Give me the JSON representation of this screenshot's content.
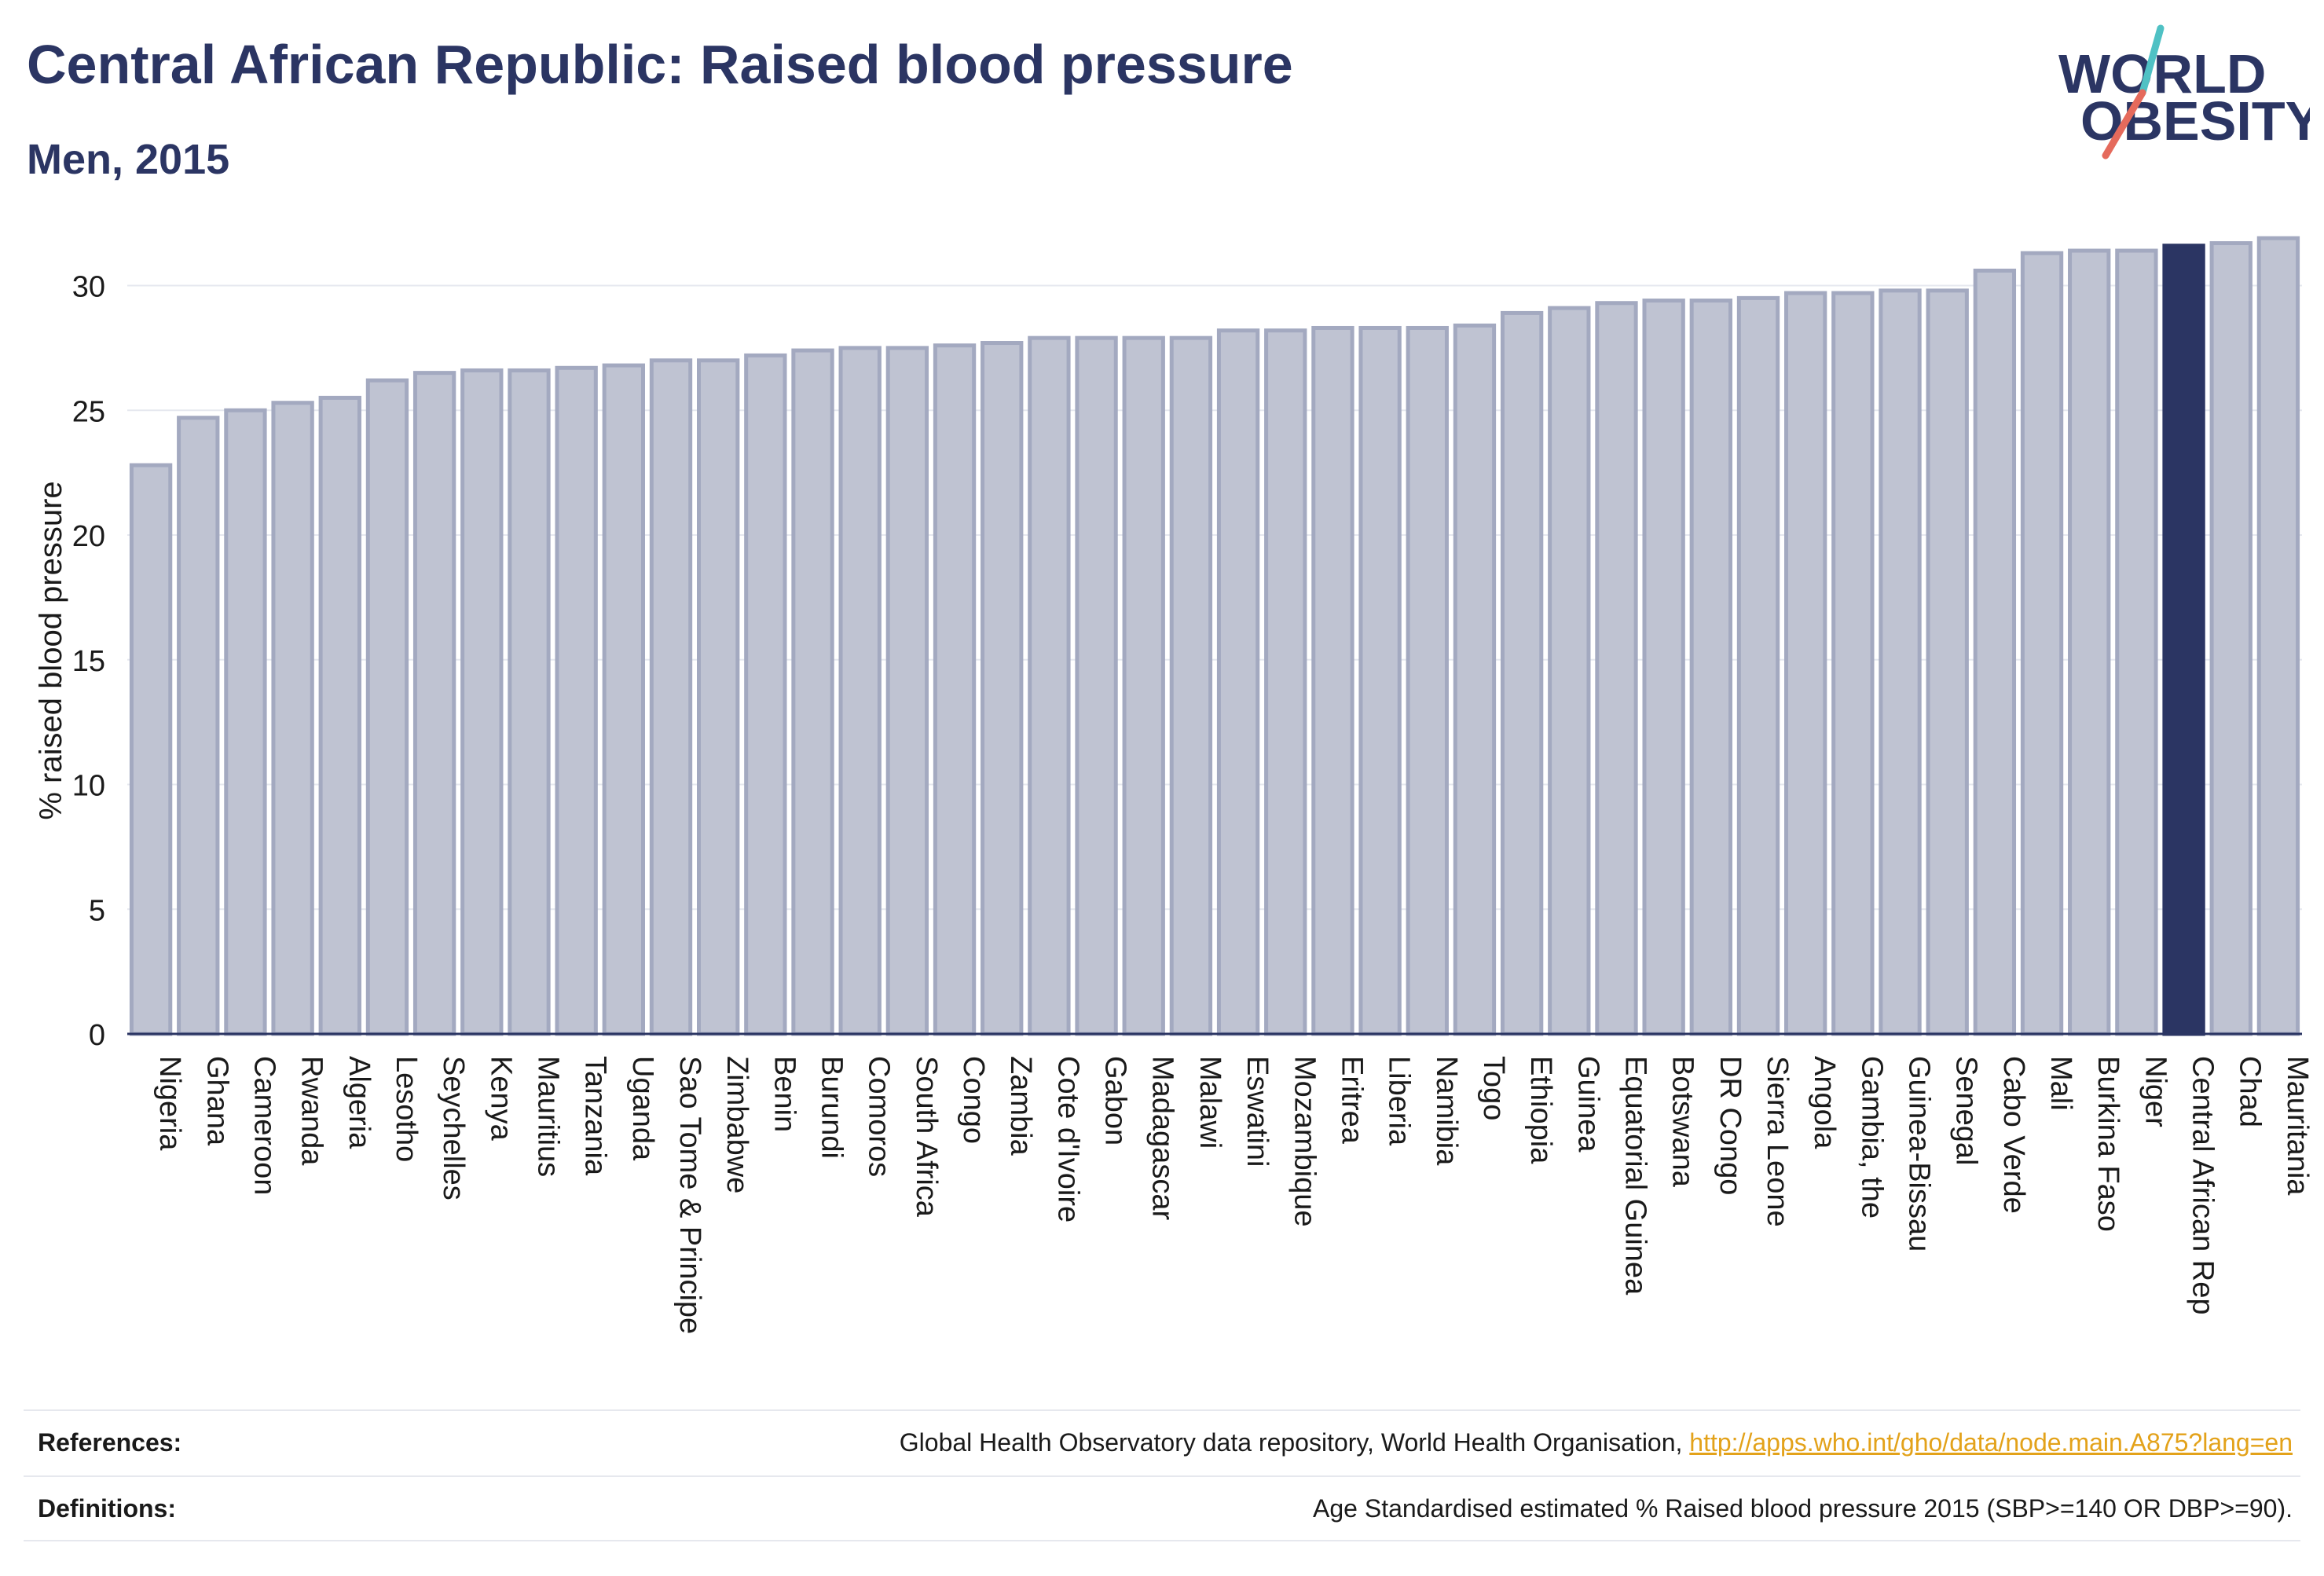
{
  "header": {
    "title": "Central African Republic: Raised blood pressure",
    "subtitle": "Men, 2015"
  },
  "logo": {
    "line1": "WORLD",
    "line2": "OBESITY",
    "slash_colors": [
      "#4fc1c4",
      "#e56a5c"
    ]
  },
  "colors": {
    "bar": "#bfc3d2",
    "bar_stroke": "#a3a9c0",
    "highlight": "#2b3563",
    "text": "#2b3563"
  },
  "chart_data": {
    "type": "bar",
    "title": "",
    "xlabel": "",
    "ylabel": "% raised blood pressure",
    "ylim": [
      0,
      32
    ],
    "yticks": [
      0,
      5,
      10,
      15,
      20,
      25,
      30
    ],
    "grid": true,
    "highlight": "Central African Rep",
    "categories": [
      "Nigeria",
      "Ghana",
      "Cameroon",
      "Rwanda",
      "Algeria",
      "Lesotho",
      "Seychelles",
      "Kenya",
      "Mauritius",
      "Tanzania",
      "Uganda",
      "Sao Tome & Principe",
      "Zimbabwe",
      "Benin",
      "Burundi",
      "Comoros",
      "South Africa",
      "Congo",
      "Zambia",
      "Cote d'Ivoire",
      "Gabon",
      "Madagascar",
      "Malawi",
      "Eswatini",
      "Mozambique",
      "Eritrea",
      "Liberia",
      "Namibia",
      "Togo",
      "Ethiopia",
      "Guinea",
      "Equatorial Guinea",
      "Botswana",
      "DR Congo",
      "Sierra Leone",
      "Angola",
      "Gambia, the",
      "Guinea-Bissau",
      "Senegal",
      "Cabo Verde",
      "Mali",
      "Burkina Faso",
      "Niger",
      "Central African Rep",
      "Chad",
      "Mauritania"
    ],
    "values": [
      22.8,
      24.7,
      25.0,
      25.3,
      25.5,
      26.2,
      26.5,
      26.6,
      26.6,
      26.7,
      26.8,
      27.0,
      27.0,
      27.2,
      27.4,
      27.5,
      27.5,
      27.6,
      27.7,
      27.9,
      27.9,
      27.9,
      27.9,
      28.2,
      28.2,
      28.3,
      28.3,
      28.3,
      28.4,
      28.9,
      29.1,
      29.3,
      29.4,
      29.4,
      29.5,
      29.7,
      29.7,
      29.8,
      29.8,
      30.6,
      31.3,
      31.4,
      31.4,
      31.6,
      31.7,
      31.9
    ]
  },
  "footer": {
    "references_label": "References:",
    "references_text": "Global Health Observatory data repository, World Health Organisation, ",
    "references_link": "http://apps.who.int/gho/data/node.main.A875?lang=en",
    "definitions_label": "Definitions:",
    "definitions_text": "Age Standardised estimated % Raised blood pressure 2015 (SBP>=140 OR DBP>=90)."
  }
}
